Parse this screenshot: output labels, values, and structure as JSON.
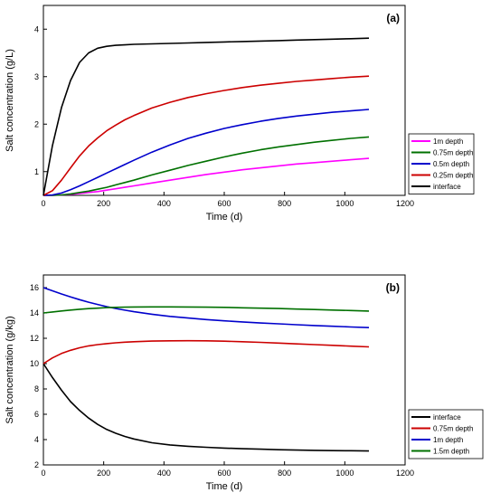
{
  "chart_data": [
    {
      "type": "line",
      "panel_label": "(a)",
      "xlabel": "Time (d)",
      "ylabel": "Salt concentration (g/L)",
      "xlim": [
        0,
        1200
      ],
      "ylim": [
        0.5,
        4.5
      ],
      "xticks": [
        0,
        200,
        400,
        600,
        800,
        1000,
        1200
      ],
      "yticks": [
        1,
        2,
        3,
        4
      ],
      "legend_position": "lower-right",
      "x": [
        0,
        30,
        60,
        90,
        120,
        150,
        180,
        210,
        240,
        270,
        300,
        360,
        420,
        480,
        540,
        600,
        660,
        720,
        780,
        840,
        900,
        960,
        1020,
        1080
      ],
      "series": [
        {
          "name": "1m depth",
          "color": "#ff00ff",
          "values": [
            0.5,
            0.5,
            0.51,
            0.52,
            0.54,
            0.56,
            0.58,
            0.61,
            0.64,
            0.67,
            0.7,
            0.76,
            0.82,
            0.88,
            0.94,
            0.99,
            1.04,
            1.08,
            1.12,
            1.16,
            1.19,
            1.22,
            1.25,
            1.28
          ]
        },
        {
          "name": "0.75m depth",
          "color": "#007000",
          "values": [
            0.5,
            0.5,
            0.51,
            0.53,
            0.56,
            0.59,
            0.63,
            0.67,
            0.72,
            0.77,
            0.82,
            0.93,
            1.03,
            1.13,
            1.22,
            1.31,
            1.39,
            1.46,
            1.52,
            1.57,
            1.62,
            1.66,
            1.7,
            1.73
          ]
        },
        {
          "name": "0.5m depth",
          "color": "#0000cc",
          "values": [
            0.5,
            0.51,
            0.55,
            0.62,
            0.7,
            0.79,
            0.88,
            0.97,
            1.06,
            1.15,
            1.24,
            1.41,
            1.56,
            1.7,
            1.81,
            1.91,
            1.99,
            2.06,
            2.12,
            2.17,
            2.21,
            2.25,
            2.28,
            2.31
          ]
        },
        {
          "name": "0.25m depth",
          "color": "#cc0000",
          "values": [
            0.5,
            0.6,
            0.82,
            1.08,
            1.33,
            1.54,
            1.71,
            1.86,
            1.98,
            2.09,
            2.18,
            2.34,
            2.46,
            2.56,
            2.64,
            2.71,
            2.77,
            2.82,
            2.86,
            2.9,
            2.93,
            2.96,
            2.99,
            3.01
          ]
        },
        {
          "name": "interface",
          "color": "#000000",
          "values": [
            0.5,
            1.55,
            2.35,
            2.92,
            3.3,
            3.5,
            3.6,
            3.64,
            3.66,
            3.67,
            3.68,
            3.69,
            3.7,
            3.71,
            3.72,
            3.73,
            3.74,
            3.75,
            3.76,
            3.77,
            3.78,
            3.79,
            3.8,
            3.81
          ]
        }
      ]
    },
    {
      "type": "line",
      "panel_label": "(b)",
      "xlabel": "Time (d)",
      "ylabel": "Salt concentration (g/kg)",
      "xlim": [
        0,
        1200
      ],
      "ylim": [
        2,
        17
      ],
      "xticks": [
        0,
        200,
        400,
        600,
        800,
        1000,
        1200
      ],
      "yticks": [
        2,
        4,
        6,
        8,
        10,
        12,
        14,
        16
      ],
      "legend_position": "lower-right",
      "x": [
        0,
        30,
        60,
        90,
        120,
        150,
        180,
        210,
        240,
        270,
        300,
        360,
        420,
        480,
        540,
        600,
        660,
        720,
        780,
        840,
        900,
        960,
        1020,
        1080
      ],
      "series": [
        {
          "name": "interface",
          "color": "#000000",
          "values": [
            10.0,
            8.9,
            7.9,
            7.0,
            6.3,
            5.7,
            5.2,
            4.8,
            4.5,
            4.25,
            4.05,
            3.75,
            3.58,
            3.47,
            3.39,
            3.33,
            3.28,
            3.24,
            3.2,
            3.17,
            3.15,
            3.13,
            3.12,
            3.1
          ]
        },
        {
          "name": "0.75m depth",
          "color": "#cc0000",
          "values": [
            10.0,
            10.45,
            10.8,
            11.05,
            11.25,
            11.4,
            11.5,
            11.58,
            11.64,
            11.69,
            11.73,
            11.78,
            11.8,
            11.81,
            11.8,
            11.77,
            11.73,
            11.68,
            11.62,
            11.56,
            11.5,
            11.44,
            11.38,
            11.32
          ]
        },
        {
          "name": "1m depth",
          "color": "#0000cc",
          "values": [
            16.0,
            15.75,
            15.5,
            15.27,
            15.05,
            14.85,
            14.67,
            14.5,
            14.35,
            14.22,
            14.1,
            13.9,
            13.73,
            13.6,
            13.48,
            13.38,
            13.29,
            13.21,
            13.14,
            13.07,
            13.01,
            12.95,
            12.89,
            12.84
          ]
        },
        {
          "name": "1.5m depth",
          "color": "#007000",
          "values": [
            14.0,
            14.08,
            14.16,
            14.23,
            14.29,
            14.34,
            14.38,
            14.42,
            14.44,
            14.46,
            14.47,
            14.48,
            14.48,
            14.47,
            14.46,
            14.44,
            14.41,
            14.38,
            14.35,
            14.31,
            14.27,
            14.23,
            14.19,
            14.15
          ]
        }
      ]
    }
  ]
}
